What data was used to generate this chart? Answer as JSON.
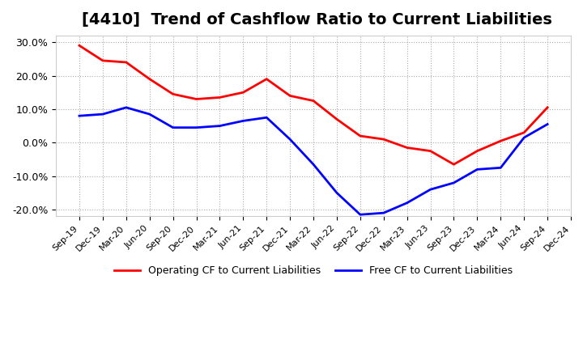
{
  "title": "[4410]  Trend of Cashflow Ratio to Current Liabilities",
  "x_labels": [
    "Sep-19",
    "Dec-19",
    "Mar-20",
    "Jun-20",
    "Sep-20",
    "Dec-20",
    "Mar-21",
    "Jun-21",
    "Sep-21",
    "Dec-21",
    "Mar-22",
    "Jun-22",
    "Sep-22",
    "Dec-22",
    "Mar-23",
    "Jun-23",
    "Sep-23",
    "Dec-23",
    "Mar-24",
    "Jun-24",
    "Sep-24",
    "Dec-24"
  ],
  "operating_cf": [
    29.0,
    24.5,
    24.0,
    19.0,
    14.5,
    13.0,
    13.5,
    15.0,
    19.0,
    14.0,
    12.5,
    7.0,
    2.0,
    1.0,
    -1.5,
    -2.5,
    -6.5,
    -2.5,
    0.5,
    3.0,
    10.5,
    null
  ],
  "free_cf": [
    8.0,
    8.5,
    10.5,
    8.5,
    4.5,
    4.5,
    5.0,
    6.5,
    7.5,
    1.0,
    -6.5,
    -15.0,
    -21.5,
    -21.0,
    -18.0,
    -14.0,
    -12.0,
    -8.0,
    -7.5,
    1.5,
    5.5,
    null
  ],
  "operating_color": "#ff0000",
  "free_color": "#0000ff",
  "ylim": [
    -22,
    32
  ],
  "yticks": [
    -20.0,
    -10.0,
    0.0,
    10.0,
    20.0,
    30.0
  ],
  "background_color": "#ffffff",
  "plot_bg_color": "#ffffff",
  "grid_color": "#aaaaaa",
  "title_fontsize": 14,
  "legend_labels": [
    "Operating CF to Current Liabilities",
    "Free CF to Current Liabilities"
  ]
}
